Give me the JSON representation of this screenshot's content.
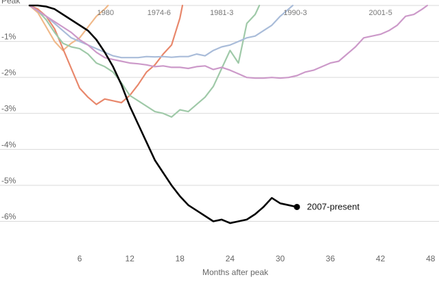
{
  "chart_data": {
    "type": "line",
    "title": "",
    "xlabel": "Months after peak",
    "ylabel": "",
    "xlim": [
      0,
      49
    ],
    "ylim": [
      -6.2,
      0
    ],
    "x_ticks": [
      6,
      12,
      18,
      24,
      30,
      36,
      42,
      48
    ],
    "x_tick_labels": [
      "6",
      "12",
      "18",
      "24",
      "30",
      "36",
      "42",
      "48"
    ],
    "y_ticks": [
      0,
      -1,
      -2,
      -3,
      -4,
      -5,
      -6
    ],
    "y_tick_labels": [
      "Peak",
      "-1%",
      "-2%",
      "-3%",
      "-4%",
      "-5%",
      "-6%"
    ],
    "grid": "horizontal",
    "series": [
      {
        "name": "1980",
        "color": "#f0b98a",
        "label_at": [
          9.1,
          0
        ],
        "points": [
          [
            0,
            0
          ],
          [
            1,
            -0.2
          ],
          [
            2,
            -0.6
          ],
          [
            3,
            -1.0
          ],
          [
            4,
            -1.25
          ],
          [
            5,
            -1.05
          ],
          [
            6,
            -0.9
          ],
          [
            7,
            -0.6
          ],
          [
            8,
            -0.3
          ],
          [
            9,
            -0.1
          ],
          [
            9.4,
            0
          ]
        ]
      },
      {
        "name": "1974-6",
        "color": "#e8876b",
        "label_at": [
          15.5,
          0
        ],
        "points": [
          [
            0,
            0
          ],
          [
            1,
            -0.1
          ],
          [
            2,
            -0.3
          ],
          [
            3,
            -0.65
          ],
          [
            4,
            -1.2
          ],
          [
            5,
            -1.75
          ],
          [
            6,
            -2.3
          ],
          [
            7,
            -2.55
          ],
          [
            8,
            -2.75
          ],
          [
            9,
            -2.6
          ],
          [
            10,
            -2.65
          ],
          [
            11,
            -2.7
          ],
          [
            12,
            -2.5
          ],
          [
            13,
            -2.2
          ],
          [
            14,
            -1.85
          ],
          [
            15,
            -1.65
          ],
          [
            16,
            -1.35
          ],
          [
            17,
            -1.1
          ],
          [
            18,
            -0.35
          ],
          [
            18.3,
            0
          ]
        ]
      },
      {
        "name": "1981-3",
        "color": "#9fc9a8",
        "label_at": [
          23,
          0
        ],
        "points": [
          [
            0,
            0
          ],
          [
            1,
            -0.15
          ],
          [
            2,
            -0.4
          ],
          [
            3,
            -0.75
          ],
          [
            4,
            -1.05
          ],
          [
            5,
            -1.15
          ],
          [
            6,
            -1.2
          ],
          [
            7,
            -1.35
          ],
          [
            8,
            -1.6
          ],
          [
            9,
            -1.7
          ],
          [
            10,
            -1.85
          ],
          [
            11,
            -2.15
          ],
          [
            12,
            -2.5
          ],
          [
            13,
            -2.65
          ],
          [
            14,
            -2.8
          ],
          [
            15,
            -2.95
          ],
          [
            16,
            -3.0
          ],
          [
            17,
            -3.1
          ],
          [
            18,
            -2.9
          ],
          [
            19,
            -2.95
          ],
          [
            20,
            -2.75
          ],
          [
            21,
            -2.55
          ],
          [
            22,
            -2.25
          ],
          [
            23,
            -1.75
          ],
          [
            24,
            -1.25
          ],
          [
            25,
            -1.6
          ],
          [
            26,
            -0.5
          ],
          [
            27,
            -0.25
          ],
          [
            27.5,
            0
          ]
        ]
      },
      {
        "name": "1990-3",
        "color": "#a9bcd9",
        "label_at": [
          31.8,
          0
        ],
        "points": [
          [
            0,
            0
          ],
          [
            1,
            -0.15
          ],
          [
            2,
            -0.3
          ],
          [
            3,
            -0.5
          ],
          [
            4,
            -0.7
          ],
          [
            5,
            -0.9
          ],
          [
            6,
            -1.0
          ],
          [
            7,
            -1.1
          ],
          [
            8,
            -1.2
          ],
          [
            9,
            -1.3
          ],
          [
            10,
            -1.4
          ],
          [
            11,
            -1.45
          ],
          [
            12,
            -1.45
          ],
          [
            13,
            -1.45
          ],
          [
            14,
            -1.42
          ],
          [
            15,
            -1.43
          ],
          [
            16,
            -1.42
          ],
          [
            17,
            -1.44
          ],
          [
            18,
            -1.42
          ],
          [
            19,
            -1.42
          ],
          [
            20,
            -1.35
          ],
          [
            21,
            -1.4
          ],
          [
            22,
            -1.25
          ],
          [
            23,
            -1.15
          ],
          [
            24,
            -1.1
          ],
          [
            25,
            -1.0
          ],
          [
            26,
            -0.9
          ],
          [
            27,
            -0.85
          ],
          [
            28,
            -0.7
          ],
          [
            29,
            -0.55
          ],
          [
            30,
            -0.3
          ],
          [
            31,
            -0.1
          ],
          [
            31.5,
            0
          ]
        ]
      },
      {
        "name": "2001-5",
        "color": "#cc99c9",
        "label_at": [
          42,
          0
        ],
        "points": [
          [
            0,
            0
          ],
          [
            1,
            -0.15
          ],
          [
            2,
            -0.3
          ],
          [
            3,
            -0.45
          ],
          [
            4,
            -0.6
          ],
          [
            5,
            -0.75
          ],
          [
            6,
            -0.95
          ],
          [
            7,
            -1.1
          ],
          [
            8,
            -1.3
          ],
          [
            9,
            -1.45
          ],
          [
            10,
            -1.5
          ],
          [
            11,
            -1.55
          ],
          [
            12,
            -1.6
          ],
          [
            13,
            -1.62
          ],
          [
            14,
            -1.65
          ],
          [
            15,
            -1.7
          ],
          [
            16,
            -1.68
          ],
          [
            17,
            -1.72
          ],
          [
            18,
            -1.72
          ],
          [
            19,
            -1.75
          ],
          [
            20,
            -1.7
          ],
          [
            21,
            -1.68
          ],
          [
            22,
            -1.78
          ],
          [
            23,
            -1.72
          ],
          [
            24,
            -1.8
          ],
          [
            25,
            -1.9
          ],
          [
            26,
            -2.0
          ],
          [
            27,
            -2.02
          ],
          [
            28,
            -2.02
          ],
          [
            29,
            -2.0
          ],
          [
            30,
            -2.02
          ],
          [
            31,
            -2.0
          ],
          [
            32,
            -1.95
          ],
          [
            33,
            -1.85
          ],
          [
            34,
            -1.8
          ],
          [
            35,
            -1.7
          ],
          [
            36,
            -1.6
          ],
          [
            37,
            -1.55
          ],
          [
            38,
            -1.35
          ],
          [
            39,
            -1.15
          ],
          [
            40,
            -0.9
          ],
          [
            41,
            -0.85
          ],
          [
            42,
            -0.8
          ],
          [
            43,
            -0.7
          ],
          [
            44,
            -0.55
          ],
          [
            45,
            -0.3
          ],
          [
            46,
            -0.25
          ],
          [
            47,
            -0.1
          ],
          [
            47.6,
            0
          ]
        ]
      },
      {
        "name": "2007-present",
        "color": "#000000",
        "bold": true,
        "endpoint_marker": true,
        "label_at": [
          33.2,
          -5.6
        ],
        "points": [
          [
            0,
            0
          ],
          [
            1,
            0
          ],
          [
            2,
            -0.03
          ],
          [
            3,
            -0.1
          ],
          [
            4,
            -0.25
          ],
          [
            5,
            -0.4
          ],
          [
            6,
            -0.55
          ],
          [
            7,
            -0.7
          ],
          [
            8,
            -0.95
          ],
          [
            9,
            -1.3
          ],
          [
            10,
            -1.7
          ],
          [
            11,
            -2.2
          ],
          [
            12,
            -2.8
          ],
          [
            13,
            -3.3
          ],
          [
            14,
            -3.8
          ],
          [
            15,
            -4.3
          ],
          [
            16,
            -4.65
          ],
          [
            17,
            -5.0
          ],
          [
            18,
            -5.3
          ],
          [
            19,
            -5.55
          ],
          [
            20,
            -5.7
          ],
          [
            21,
            -5.85
          ],
          [
            22,
            -6.0
          ],
          [
            23,
            -5.95
          ],
          [
            24,
            -6.05
          ],
          [
            25,
            -6.0
          ],
          [
            26,
            -5.95
          ],
          [
            27,
            -5.8
          ],
          [
            28,
            -5.6
          ],
          [
            29,
            -5.35
          ],
          [
            30,
            -5.5
          ],
          [
            31,
            -5.55
          ],
          [
            32,
            -5.6
          ]
        ]
      }
    ]
  }
}
